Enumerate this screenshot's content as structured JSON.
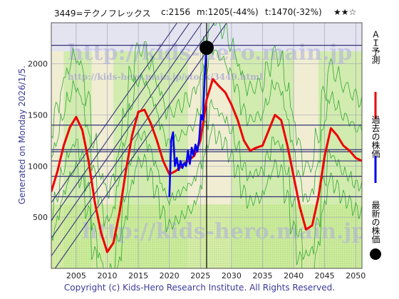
{
  "header": {
    "ticker": "3449=テクノフレックス",
    "current": "c:2156",
    "m": "m:1205(-44%)",
    "t": "t:1470(-32%)",
    "stars": "★★☆"
  },
  "side_label": "Generated on Monday 2026/1/5.",
  "watermark": {
    "url": "http://kids-hero.main.jp",
    "sub": "http://kids-hero.main.jp/stock/3449.html"
  },
  "legend": [
    {
      "label": "ＡＩ予測",
      "color": "#ee0000",
      "marker": "line"
    },
    {
      "label": "過去の株価",
      "color": "#0000ee",
      "marker": "line"
    },
    {
      "label": "最新の株価",
      "color": "#000000",
      "marker": "dot"
    }
  ],
  "footer": "Copyright (c) Kids-Hero Research Institute. All Rights Reserved.",
  "chart_data": {
    "type": "line",
    "xlim": [
      2001,
      2051
    ],
    "ylim": [
      0,
      2400
    ],
    "x_ticks": [
      2005,
      2010,
      2015,
      2020,
      2025,
      2030,
      2035,
      2040,
      2045,
      2050
    ],
    "y_ticks": [
      500,
      1000,
      1500,
      2000
    ],
    "grid": true,
    "latest": {
      "x": 2026.0,
      "y": 2156
    },
    "h_lines": [
      2180,
      1400,
      1160,
      1140,
      1050,
      900,
      700
    ],
    "v_line": 2026,
    "series": [
      {
        "name": "ＡＩ予測",
        "color": "#ee0000",
        "x": [
          2001,
          2002,
          2003,
          2004,
          2005,
          2006,
          2007,
          2008,
          2009,
          2010,
          2011,
          2012,
          2013,
          2014,
          2015,
          2016,
          2017,
          2018,
          2019,
          2020,
          2021,
          2022,
          2023,
          2024,
          2025,
          2026,
          2027,
          2028,
          2029,
          2030,
          2031,
          2032,
          2033,
          2034,
          2035,
          2036,
          2037,
          2038,
          2039,
          2040,
          2041,
          2042,
          2043,
          2044,
          2045,
          2046,
          2047,
          2048,
          2049,
          2050,
          2051
        ],
        "values": [
          750,
          950,
          1200,
          1380,
          1480,
          1350,
          1050,
          650,
          350,
          160,
          250,
          550,
          950,
          1300,
          1530,
          1550,
          1420,
          1250,
          1050,
          920,
          950,
          1000,
          1050,
          1100,
          1250,
          1650,
          1850,
          1780,
          1720,
          1600,
          1450,
          1250,
          1150,
          1180,
          1200,
          1350,
          1500,
          1450,
          1200,
          900,
          600,
          380,
          420,
          700,
          1100,
          1370,
          1300,
          1200,
          1150,
          1080,
          1050
        ]
      },
      {
        "name": "過去の株価",
        "color": "#0000ee",
        "x": [
          2020.0,
          2020.3,
          2020.6,
          2020.9,
          2021.2,
          2021.5,
          2021.8,
          2022.1,
          2022.4,
          2022.7,
          2023.0,
          2023.3,
          2023.6,
          2023.9,
          2024.2,
          2024.5,
          2024.8,
          2025.1,
          2025.4,
          2025.7,
          2026.0
        ],
        "values": [
          700,
          1250,
          1330,
          1000,
          1080,
          960,
          1050,
          980,
          1030,
          1000,
          1150,
          1020,
          1180,
          1100,
          1210,
          1140,
          1260,
          1500,
          1450,
          1900,
          2156
        ]
      }
    ]
  }
}
